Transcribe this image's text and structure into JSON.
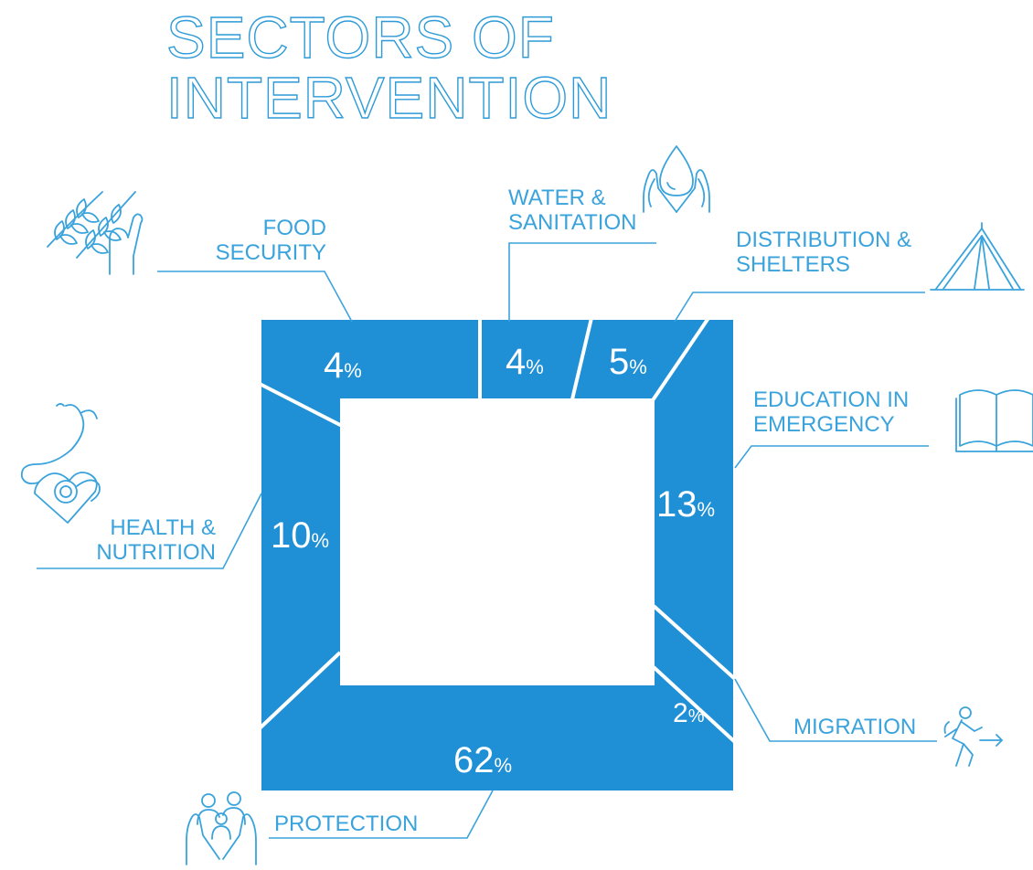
{
  "title": {
    "line1": "SECTORS OF",
    "line2": "INTERVENTION"
  },
  "colors": {
    "bar": "#1f8fd6",
    "line": "#3aa3dc",
    "text": "#3aa3dc"
  },
  "chart_data": {
    "type": "square-segment-infographic",
    "unit": "%",
    "segments": [
      {
        "label_line1": "FOOD",
        "label_line2": "SECURITY",
        "value": 4,
        "icon": "wheat-hand-icon"
      },
      {
        "label_line1": "WATER &",
        "label_line2": "SANITATION",
        "value": 4,
        "icon": "water-drop-hands-icon"
      },
      {
        "label_line1": "DISTRIBUTION &",
        "label_line2": "SHELTERS",
        "value": 5,
        "icon": "tent-icon"
      },
      {
        "label_line1": "EDUCATION IN",
        "label_line2": "EMERGENCY",
        "value": 13,
        "icon": "open-book-icon"
      },
      {
        "label_line1": "MIGRATION",
        "label_line2": "",
        "value": 2,
        "icon": "running-person-arrow-icon"
      },
      {
        "label_line1": "PROTECTION",
        "label_line2": "",
        "value": 62,
        "icon": "family-hands-icon"
      },
      {
        "label_line1": "HEALTH &",
        "label_line2": "NUTRITION",
        "value": 10,
        "icon": "stethoscope-heart-icon"
      }
    ]
  }
}
